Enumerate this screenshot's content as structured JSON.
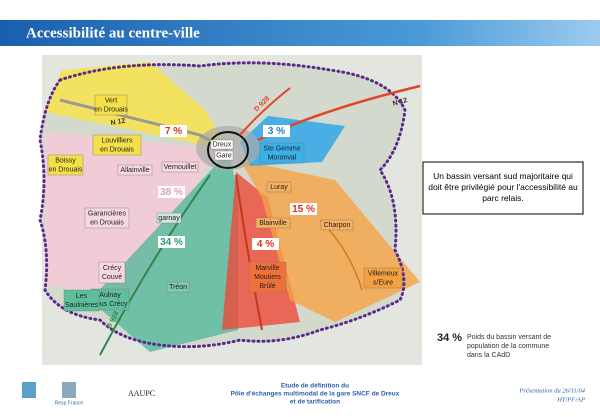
{
  "header": {
    "title": "Accessibilité au centre-ville"
  },
  "map": {
    "communes": [
      {
        "label": [
          "Vert",
          "en Drouais"
        ]
      },
      {
        "label": [
          "Louvilliers",
          "en Drouais"
        ]
      },
      {
        "label": [
          "Boissy",
          "en Drouais"
        ]
      },
      {
        "label": [
          "Allainville"
        ]
      },
      {
        "label": [
          "Vernouillet"
        ]
      },
      {
        "label": [
          "Dreux"
        ]
      },
      {
        "label": [
          "Gare"
        ]
      },
      {
        "label": [
          "Ste Gemme",
          "Moronval"
        ]
      },
      {
        "label": [
          "Garancières",
          "en Drouais"
        ]
      },
      {
        "label": [
          "garnay"
        ]
      },
      {
        "label": [
          "Luray"
        ]
      },
      {
        "label": [
          "Blainville"
        ]
      },
      {
        "label": [
          "Charpon"
        ]
      },
      {
        "label": [
          "Crécy",
          "Couvé"
        ]
      },
      {
        "label": [
          "Aulnay",
          "sous Crécy"
        ]
      },
      {
        "label": [
          "Les",
          "Saulnières"
        ]
      },
      {
        "label": [
          "Tréon"
        ]
      },
      {
        "label": [
          "Marville",
          "Moutiers",
          "Brûlé"
        ]
      },
      {
        "label": [
          "Villemeux",
          "s/Eure"
        ]
      }
    ],
    "shares": [
      "7 %",
      "3 %",
      "38 %",
      "15 %",
      "34 %",
      "4 %"
    ],
    "roads": [
      "N 12",
      "N 12",
      "D 928",
      "D 928"
    ]
  },
  "note": "Un bassin versant sud majoritaire qui doit être privilégié pour l'accessibilité au parc relais.",
  "legend": {
    "sample": "34 %",
    "text": [
      "Poids du bassin versant de",
      "population de la commune",
      "dans la CAdD"
    ]
  },
  "footer": {
    "logo_left": "Resp France",
    "org": "AAUPC",
    "study": [
      "Etude de définition du",
      "Pôle d'échanges multimodal de la gare SNCF de Dreux",
      "et de tarification"
    ],
    "date": "Présentation du 26/11/04",
    "authors": "HT/PF/AP"
  }
}
